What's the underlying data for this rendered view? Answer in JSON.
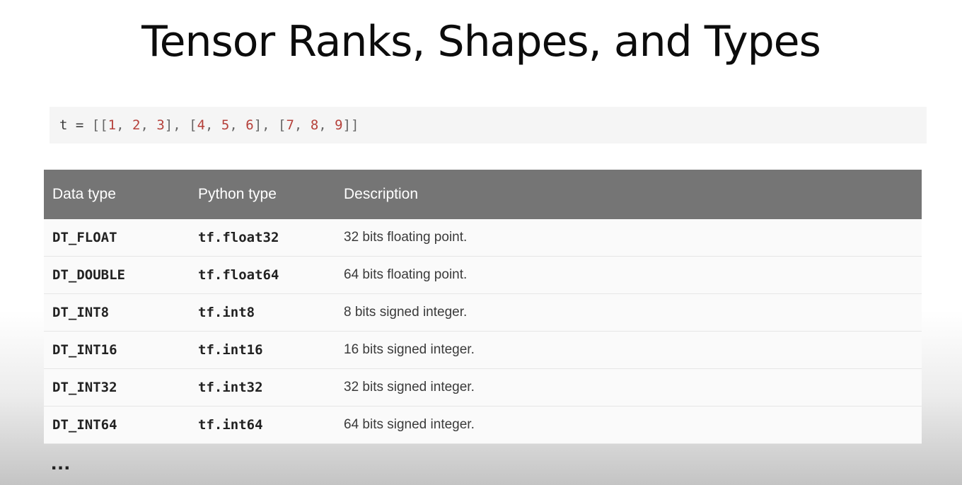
{
  "slide": {
    "title": "Tensor Ranks, Shapes, and Types",
    "ellipsis": "..."
  },
  "code": {
    "tokens": [
      {
        "text": "t = ",
        "kind": "plain"
      },
      {
        "text": "[[",
        "kind": "pun"
      },
      {
        "text": "1",
        "kind": "num"
      },
      {
        "text": ", ",
        "kind": "pun"
      },
      {
        "text": "2",
        "kind": "num"
      },
      {
        "text": ", ",
        "kind": "pun"
      },
      {
        "text": "3",
        "kind": "num"
      },
      {
        "text": "], [",
        "kind": "pun"
      },
      {
        "text": "4",
        "kind": "num"
      },
      {
        "text": ", ",
        "kind": "pun"
      },
      {
        "text": "5",
        "kind": "num"
      },
      {
        "text": ", ",
        "kind": "pun"
      },
      {
        "text": "6",
        "kind": "num"
      },
      {
        "text": "], [",
        "kind": "pun"
      },
      {
        "text": "7",
        "kind": "num"
      },
      {
        "text": ", ",
        "kind": "pun"
      },
      {
        "text": "8",
        "kind": "num"
      },
      {
        "text": ", ",
        "kind": "pun"
      },
      {
        "text": "9",
        "kind": "num"
      },
      {
        "text": "]]",
        "kind": "pun"
      }
    ]
  },
  "table": {
    "headers": [
      "Data type",
      "Python type",
      "Description"
    ],
    "rows": [
      [
        "DT_FLOAT",
        "tf.float32",
        "32 bits floating point."
      ],
      [
        "DT_DOUBLE",
        "tf.float64",
        "64 bits floating point."
      ],
      [
        "DT_INT8",
        "tf.int8",
        "8 bits signed integer."
      ],
      [
        "DT_INT16",
        "tf.int16",
        "16 bits signed integer."
      ],
      [
        "DT_INT32",
        "tf.int32",
        "32 bits signed integer."
      ],
      [
        "DT_INT64",
        "tf.int64",
        "64 bits signed integer."
      ]
    ]
  },
  "colors": {
    "header_bg": "#757575",
    "code_number": "#b5403a",
    "code_bg": "#f5f5f5"
  }
}
